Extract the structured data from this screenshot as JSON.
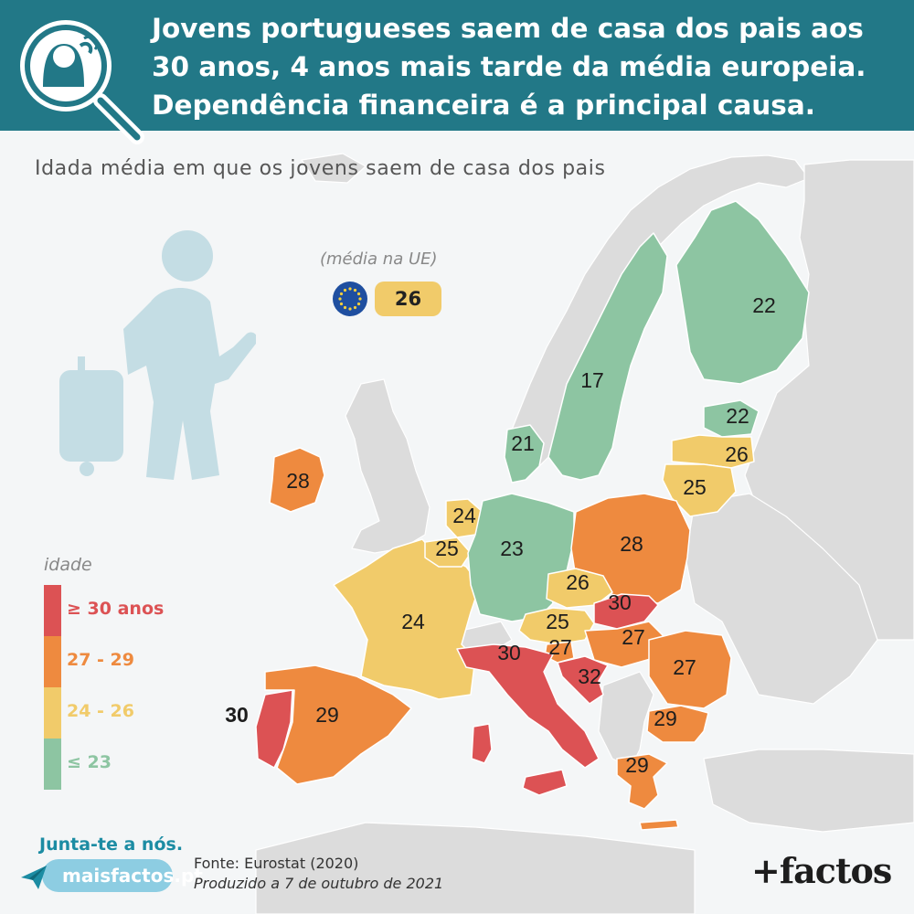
{
  "header": {
    "title_lines": [
      "Jovens portugueses saem de casa dos pais aos",
      "30 anos, 4 anos mais tarde da média europeia.",
      "Dependência financeira é a principal causa."
    ]
  },
  "subtitle": "Idada média em que os jovens saem de casa dos pais",
  "eu_average": {
    "caption": "(média na UE)",
    "value": "26",
    "icon": "eu-flag-icon"
  },
  "legend": {
    "title": "idade",
    "items": [
      {
        "label": "≥ 30 anos",
        "color": "#dc5254"
      },
      {
        "label": "27 - 29",
        "color": "#ee8a3f"
      },
      {
        "label": "24 - 26",
        "color": "#f1cb6a"
      },
      {
        "label": "≤ 23",
        "color": "#8dc5a2"
      }
    ]
  },
  "colors": {
    "header_bg": "#227887",
    "non_eu_land": "#dcdcdc",
    "red": "#dc5254",
    "orange": "#ee8a3f",
    "yellow": "#f1cb6a",
    "green": "#8dc5a2",
    "icon_fill": "#c4dde4"
  },
  "countries": [
    {
      "id": "pt",
      "value": "30",
      "band": "red"
    },
    {
      "id": "es",
      "value": "29",
      "band": "orange"
    },
    {
      "id": "fr",
      "value": "24",
      "band": "yellow"
    },
    {
      "id": "ie",
      "value": "28",
      "band": "orange"
    },
    {
      "id": "be",
      "value": "25",
      "band": "yellow"
    },
    {
      "id": "nl",
      "value": "24",
      "band": "yellow"
    },
    {
      "id": "de",
      "value": "23",
      "band": "green"
    },
    {
      "id": "dk",
      "value": "21",
      "band": "green"
    },
    {
      "id": "se",
      "value": "17",
      "band": "green"
    },
    {
      "id": "fi",
      "value": "22",
      "band": "green"
    },
    {
      "id": "ee",
      "value": "22",
      "band": "green"
    },
    {
      "id": "lv",
      "value": "26",
      "band": "yellow"
    },
    {
      "id": "lt",
      "value": "25",
      "band": "yellow"
    },
    {
      "id": "pl",
      "value": "28",
      "band": "orange"
    },
    {
      "id": "cz",
      "value": "26",
      "band": "yellow"
    },
    {
      "id": "sk",
      "value": "30",
      "band": "red"
    },
    {
      "id": "at",
      "value": "25",
      "band": "yellow"
    },
    {
      "id": "si",
      "value": "27",
      "band": "orange"
    },
    {
      "id": "hu",
      "value": "27",
      "band": "orange"
    },
    {
      "id": "ro",
      "value": "27",
      "band": "orange"
    },
    {
      "id": "it",
      "value": "30",
      "band": "red"
    },
    {
      "id": "hr",
      "value": "32",
      "band": "red"
    },
    {
      "id": "bg",
      "value": "29",
      "band": "orange"
    },
    {
      "id": "gr",
      "value": "29",
      "band": "orange"
    }
  ],
  "footer": {
    "cta": "Junta-te a nós.",
    "site": "maisfactos.pt",
    "source": "Fonte: Eurostat (2020)",
    "produced": "Produzido a 7 de outubro de 2021",
    "brand": "+factos"
  }
}
